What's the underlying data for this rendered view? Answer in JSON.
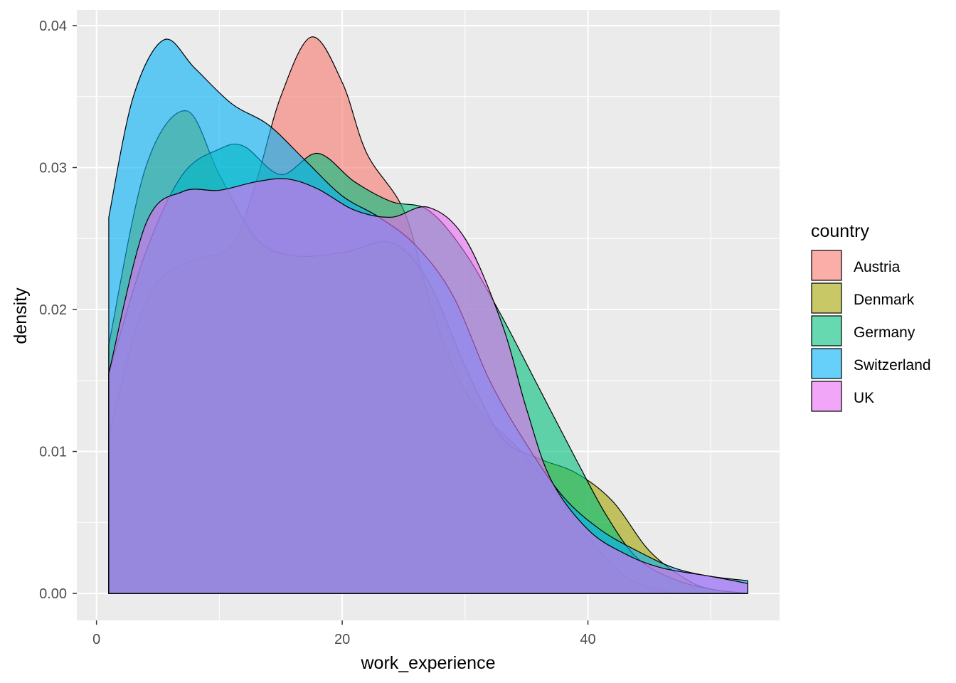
{
  "chart_data": {
    "type": "area",
    "subtype": "density",
    "title": "",
    "xlabel": "work_experience",
    "ylabel": "density",
    "xlim": [
      -1.6,
      55.6
    ],
    "ylim": [
      -0.0019,
      0.0411
    ],
    "x_ticks": [
      0,
      20,
      40
    ],
    "x_tick_labels": [
      "0",
      "20",
      "40"
    ],
    "y_ticks": [
      0,
      0.01,
      0.02,
      0.03,
      0.04
    ],
    "y_tick_labels": [
      "0.00",
      "0.01",
      "0.02",
      "0.03",
      "0.04"
    ],
    "grid": true,
    "legend": {
      "title": "country",
      "placement": "right"
    },
    "fill_alpha": 0.6,
    "series": [
      {
        "name": "Austria",
        "color": "#F8766D",
        "points": [
          [
            1,
            0.011
          ],
          [
            3,
            0.018
          ],
          [
            5,
            0.022
          ],
          [
            8,
            0.0235
          ],
          [
            11,
            0.0245
          ],
          [
            13,
            0.029
          ],
          [
            15,
            0.035
          ],
          [
            17.5,
            0.0392
          ],
          [
            20,
            0.036
          ],
          [
            22,
            0.031
          ],
          [
            25,
            0.027
          ],
          [
            27,
            0.021
          ],
          [
            29,
            0.016
          ],
          [
            31,
            0.013
          ],
          [
            34,
            0.0105
          ],
          [
            37,
            0.0075
          ],
          [
            40,
            0.004
          ],
          [
            43,
            0.0012
          ],
          [
            46,
            0.0002
          ],
          [
            48,
            0
          ],
          [
            53,
            0
          ]
        ]
      },
      {
        "name": "Denmark",
        "color": "#A3A500",
        "points": [
          [
            1,
            0.0175
          ],
          [
            4,
            0.03
          ],
          [
            7.3,
            0.034
          ],
          [
            10,
            0.0295
          ],
          [
            13,
            0.025
          ],
          [
            16,
            0.0238
          ],
          [
            20,
            0.024
          ],
          [
            24,
            0.0247
          ],
          [
            27,
            0.022
          ],
          [
            30,
            0.016
          ],
          [
            33,
            0.011
          ],
          [
            36,
            0.0095
          ],
          [
            39,
            0.0085
          ],
          [
            42,
            0.0065
          ],
          [
            45,
            0.003
          ],
          [
            48,
            0.001
          ],
          [
            50,
            0.0003
          ],
          [
            53,
            0
          ]
        ]
      },
      {
        "name": "Germany",
        "color": "#00BF7D",
        "points": [
          [
            1,
            0.0155
          ],
          [
            4,
            0.024
          ],
          [
            7,
            0.0295
          ],
          [
            10,
            0.0313
          ],
          [
            12,
            0.0315
          ],
          [
            15,
            0.0295
          ],
          [
            18,
            0.031
          ],
          [
            21,
            0.029
          ],
          [
            24,
            0.0276
          ],
          [
            27,
            0.027
          ],
          [
            30,
            0.024
          ],
          [
            33,
            0.0195
          ],
          [
            36,
            0.0145
          ],
          [
            39,
            0.0095
          ],
          [
            41.5,
            0.0055
          ],
          [
            44,
            0.0025
          ],
          [
            47,
            0.001
          ],
          [
            50,
            0.0003
          ],
          [
            53,
            0
          ]
        ]
      },
      {
        "name": "Switzerland",
        "color": "#00B0F6",
        "points": [
          [
            1,
            0.0265
          ],
          [
            3,
            0.035
          ],
          [
            5.5,
            0.039
          ],
          [
            8,
            0.037
          ],
          [
            11,
            0.0345
          ],
          [
            14,
            0.033
          ],
          [
            17,
            0.0305
          ],
          [
            20,
            0.028
          ],
          [
            23,
            0.0265
          ],
          [
            26,
            0.0245
          ],
          [
            29,
            0.021
          ],
          [
            32,
            0.015
          ],
          [
            35,
            0.0105
          ],
          [
            38,
            0.0068
          ],
          [
            41,
            0.0045
          ],
          [
            44,
            0.003
          ],
          [
            47,
            0.0018
          ],
          [
            50,
            0.0012
          ],
          [
            53,
            0.0009
          ]
        ]
      },
      {
        "name": "UK",
        "color": "#E76BF3",
        "points": [
          [
            1,
            0.0155
          ],
          [
            4,
            0.026
          ],
          [
            7,
            0.0283
          ],
          [
            10,
            0.0284
          ],
          [
            13,
            0.029
          ],
          [
            15.5,
            0.0292
          ],
          [
            18,
            0.0285
          ],
          [
            21,
            0.027
          ],
          [
            24,
            0.0265
          ],
          [
            27,
            0.0272
          ],
          [
            30,
            0.025
          ],
          [
            33,
            0.019
          ],
          [
            35,
            0.013
          ],
          [
            37,
            0.008
          ],
          [
            40,
            0.0045
          ],
          [
            43,
            0.0028
          ],
          [
            46,
            0.0018
          ],
          [
            50,
            0.0012
          ],
          [
            53,
            0.0007
          ]
        ]
      }
    ]
  }
}
